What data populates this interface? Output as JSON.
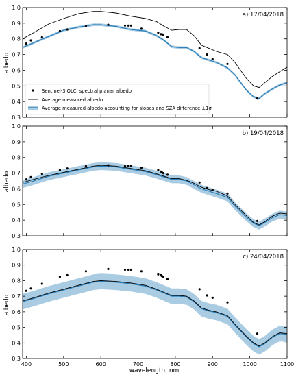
{
  "figure": {
    "xlabel": "wavelength, nm",
    "ylabel": "albedo"
  },
  "colors": {
    "measured_line": "#000000",
    "sat_points": "#000000",
    "corrected_line": "#1f77b4",
    "corrected_band": "#a9cce3"
  },
  "chart_data": [
    {
      "type": "line",
      "panel": "a",
      "title": "a) 17/04/2018",
      "xlim": [
        390,
        1100
      ],
      "ylim": [
        0.3,
        1.0
      ],
      "xticks": [
        400,
        500,
        600,
        700,
        800,
        900,
        1000,
        1100
      ],
      "yticks": [
        0.3,
        0.4,
        0.5,
        0.6,
        0.7,
        0.8,
        0.9,
        1.0
      ],
      "xtick_labels_shown": false,
      "legend": {
        "placement": "bottom-left",
        "entries": [
          "Sentinel-3 OLCI spectral planar albedo",
          "Average measured albedo",
          "Average measured albedo accounting for slopes and SZA difference ±1σ"
        ]
      },
      "series": [
        {
          "name": "Average measured albedo",
          "x": [
            390,
            420,
            460,
            500,
            540,
            580,
            600,
            640,
            680,
            720,
            750,
            770,
            790,
            810,
            830,
            850,
            870,
            890,
            910,
            940,
            960,
            990,
            1010,
            1025,
            1040,
            1060,
            1080,
            1100
          ],
          "y": [
            0.8,
            0.84,
            0.895,
            0.93,
            0.96,
            0.975,
            0.975,
            0.965,
            0.945,
            0.93,
            0.91,
            0.88,
            0.855,
            0.86,
            0.86,
            0.82,
            0.76,
            0.74,
            0.72,
            0.7,
            0.65,
            0.55,
            0.5,
            0.49,
            0.52,
            0.56,
            0.59,
            0.62
          ]
        },
        {
          "name": "Average measured albedo accounting for slopes and SZA difference ±1σ",
          "x": [
            390,
            420,
            460,
            500,
            540,
            580,
            600,
            640,
            680,
            720,
            750,
            770,
            790,
            810,
            830,
            850,
            870,
            890,
            910,
            940,
            960,
            990,
            1010,
            1025,
            1040,
            1060,
            1080,
            1100
          ],
          "y": [
            0.745,
            0.775,
            0.815,
            0.855,
            0.875,
            0.89,
            0.89,
            0.88,
            0.86,
            0.85,
            0.82,
            0.79,
            0.75,
            0.745,
            0.745,
            0.72,
            0.68,
            0.665,
            0.65,
            0.615,
            0.57,
            0.475,
            0.43,
            0.42,
            0.45,
            0.48,
            0.505,
            0.52
          ],
          "sigma": 0.008
        },
        {
          "name": "Sentinel-3 OLCI spectral planar albedo",
          "x": [
            400,
            412,
            442,
            490,
            510,
            560,
            620,
            665,
            674,
            681,
            709,
            754,
            761,
            764,
            768,
            779,
            865,
            885,
            900,
            940,
            1020
          ],
          "y": [
            0.77,
            0.79,
            0.81,
            0.85,
            0.86,
            0.88,
            0.89,
            0.885,
            0.885,
            0.885,
            0.865,
            0.84,
            0.83,
            0.83,
            0.825,
            0.81,
            0.74,
            0.7,
            0.67,
            0.64,
            0.42
          ]
        }
      ]
    },
    {
      "type": "line",
      "panel": "b",
      "title": "b) 19/04/2018",
      "xlim": [
        390,
        1100
      ],
      "ylim": [
        0.3,
        1.0
      ],
      "xticks": [
        400,
        500,
        600,
        700,
        800,
        900,
        1000,
        1100
      ],
      "yticks": [
        0.3,
        0.4,
        0.5,
        0.6,
        0.7,
        0.8,
        0.9,
        1.0
      ],
      "xtick_labels_shown": false,
      "series": [
        {
          "name": "Average measured albedo",
          "x": [
            390,
            420,
            460,
            500,
            540,
            580,
            600,
            640,
            680,
            720,
            750,
            770,
            790,
            810,
            830,
            850,
            870,
            890,
            910,
            940,
            960,
            990,
            1010,
            1025,
            1040,
            1060,
            1080,
            1100
          ],
          "y": [
            0.64,
            0.66,
            0.685,
            0.705,
            0.725,
            0.745,
            0.75,
            0.745,
            0.73,
            0.715,
            0.695,
            0.68,
            0.665,
            0.665,
            0.655,
            0.635,
            0.61,
            0.595,
            0.585,
            0.555,
            0.5,
            0.43,
            0.385,
            0.37,
            0.39,
            0.425,
            0.445,
            0.44
          ]
        },
        {
          "name": "Average measured albedo accounting for slopes and SZA difference ±1σ",
          "x": [
            390,
            420,
            460,
            500,
            540,
            580,
            600,
            640,
            680,
            720,
            750,
            770,
            790,
            810,
            830,
            850,
            870,
            890,
            910,
            940,
            960,
            990,
            1010,
            1025,
            1040,
            1060,
            1080,
            1100
          ],
          "y": [
            0.63,
            0.65,
            0.68,
            0.7,
            0.72,
            0.74,
            0.745,
            0.74,
            0.725,
            0.71,
            0.69,
            0.675,
            0.66,
            0.66,
            0.65,
            0.625,
            0.6,
            0.585,
            0.57,
            0.545,
            0.49,
            0.42,
            0.38,
            0.365,
            0.385,
            0.415,
            0.435,
            0.43
          ],
          "sigma": 0.025
        },
        {
          "name": "Sentinel-3 OLCI spectral planar albedo",
          "x": [
            400,
            412,
            442,
            490,
            510,
            560,
            620,
            665,
            674,
            681,
            709,
            754,
            761,
            764,
            768,
            779,
            865,
            885,
            900,
            940,
            1020
          ],
          "y": [
            0.66,
            0.675,
            0.695,
            0.72,
            0.73,
            0.745,
            0.75,
            0.745,
            0.745,
            0.745,
            0.735,
            0.72,
            0.71,
            0.705,
            0.7,
            0.69,
            0.64,
            0.605,
            0.595,
            0.57,
            0.395
          ]
        }
      ]
    },
    {
      "type": "line",
      "panel": "c",
      "title": "c) 24/04/2018",
      "xlim": [
        390,
        1100
      ],
      "ylim": [
        0.3,
        1.0
      ],
      "xticks": [
        400,
        500,
        600,
        700,
        800,
        900,
        1000,
        1100
      ],
      "yticks": [
        0.3,
        0.4,
        0.5,
        0.6,
        0.7,
        0.8,
        0.9,
        1.0
      ],
      "xtick_labels_shown": true,
      "series": [
        {
          "name": "Average measured albedo",
          "x": [
            390,
            420,
            460,
            500,
            540,
            580,
            600,
            640,
            680,
            720,
            750,
            770,
            790,
            810,
            830,
            850,
            870,
            890,
            910,
            940,
            960,
            990,
            1010,
            1025,
            1040,
            1060,
            1080,
            1100
          ],
          "y": [
            0.67,
            0.69,
            0.72,
            0.745,
            0.77,
            0.795,
            0.8,
            0.795,
            0.785,
            0.77,
            0.745,
            0.725,
            0.705,
            0.705,
            0.7,
            0.67,
            0.625,
            0.61,
            0.6,
            0.575,
            0.52,
            0.445,
            0.4,
            0.38,
            0.4,
            0.44,
            0.465,
            0.46
          ]
        },
        {
          "name": "Average measured albedo accounting for slopes and SZA difference ±1σ",
          "x": [
            390,
            420,
            460,
            500,
            540,
            580,
            600,
            640,
            680,
            720,
            750,
            770,
            790,
            810,
            830,
            850,
            870,
            890,
            910,
            940,
            960,
            990,
            1010,
            1025,
            1040,
            1060,
            1080,
            1100
          ],
          "y": [
            0.665,
            0.685,
            0.715,
            0.74,
            0.765,
            0.79,
            0.795,
            0.79,
            0.78,
            0.765,
            0.74,
            0.72,
            0.7,
            0.7,
            0.695,
            0.665,
            0.62,
            0.605,
            0.595,
            0.57,
            0.515,
            0.44,
            0.395,
            0.375,
            0.395,
            0.435,
            0.46,
            0.455
          ],
          "sigma": 0.05
        },
        {
          "name": "Sentinel-3 OLCI spectral planar albedo",
          "x": [
            400,
            412,
            442,
            490,
            510,
            560,
            620,
            665,
            674,
            681,
            709,
            754,
            761,
            764,
            768,
            779,
            865,
            885,
            900,
            940,
            1020
          ],
          "y": [
            0.735,
            0.75,
            0.78,
            0.825,
            0.835,
            0.86,
            0.875,
            0.87,
            0.87,
            0.87,
            0.86,
            0.84,
            0.835,
            0.83,
            0.825,
            0.81,
            0.745,
            0.705,
            0.69,
            0.66,
            0.46
          ]
        }
      ]
    }
  ]
}
